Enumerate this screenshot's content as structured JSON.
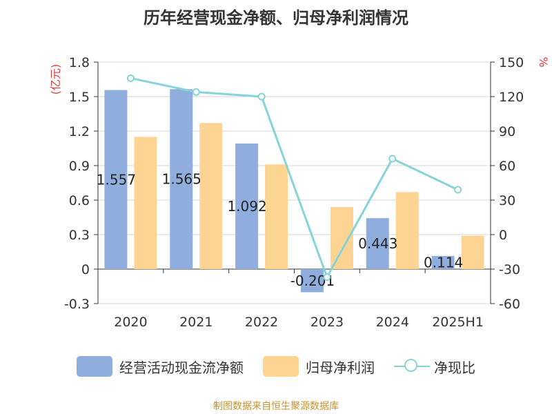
{
  "title": "历年经营现金净额、归母净利润情况",
  "source": "制图数据来自恒生聚源数据库",
  "colors": {
    "bar1": "#8faedd",
    "bar2": "#fed493",
    "line": "#86d3d8",
    "yunit": "#e03c3c"
  },
  "chart_data": {
    "type": "bar",
    "categories": [
      "2020",
      "2021",
      "2022",
      "2023",
      "2024",
      "2025H1"
    ],
    "left_axis": {
      "unit": "(亿元)",
      "ticks": [
        "1.8",
        "1.5",
        "1.2",
        "0.9",
        "0.6",
        "0.3",
        "0",
        "-0.3"
      ],
      "ylim": [
        -0.3,
        1.8
      ]
    },
    "right_axis": {
      "unit": "%",
      "ticks": [
        "150",
        "120",
        "90",
        "60",
        "30",
        "0",
        "-30",
        "-60"
      ],
      "ylim": [
        -60,
        150
      ]
    },
    "series": [
      {
        "name": "经营活动现金流净额",
        "type": "bar",
        "axis": "left",
        "values": [
          1.557,
          1.565,
          1.092,
          -0.201,
          0.443,
          0.114
        ],
        "labels": [
          "1.557",
          "1.565",
          "1.092",
          "-0.201",
          "0.443",
          "0.114"
        ]
      },
      {
        "name": "归母净利润",
        "type": "bar",
        "axis": "left",
        "values": [
          1.15,
          1.27,
          0.91,
          0.54,
          0.67,
          0.29
        ]
      },
      {
        "name": "净现比",
        "type": "line",
        "axis": "right",
        "values": [
          136,
          124,
          120,
          -37,
          66,
          39
        ]
      }
    ],
    "grid": true,
    "legend": "bottom"
  }
}
